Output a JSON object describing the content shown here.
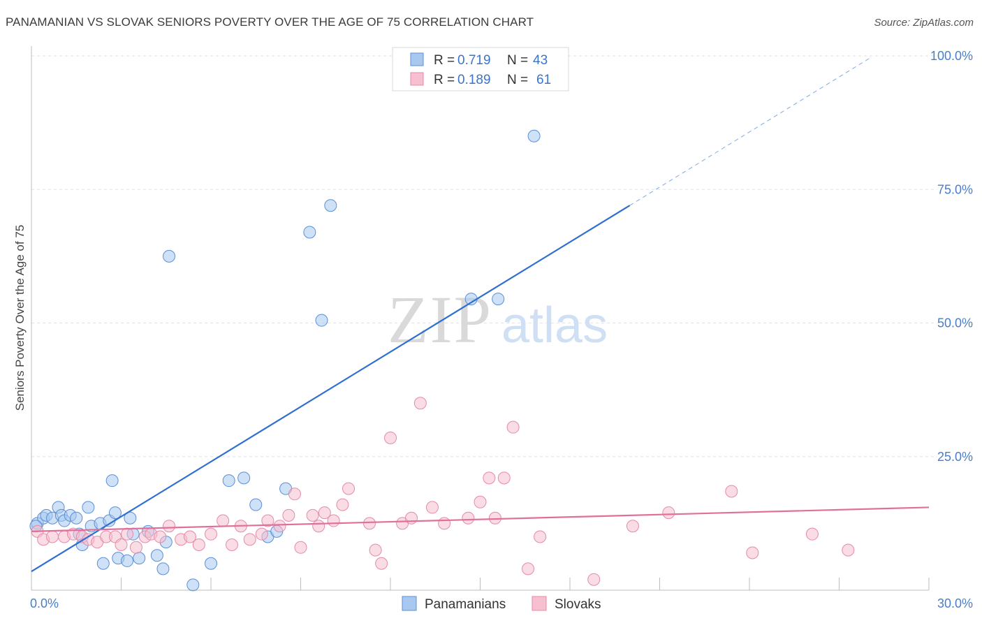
{
  "title": "PANAMANIAN VS SLOVAK SENIORS POVERTY OVER THE AGE OF 75 CORRELATION CHART",
  "source": "Source: ZipAtlas.com",
  "chart_data": {
    "type": "scatter",
    "title": "PANAMANIAN VS SLOVAK SENIORS POVERTY OVER THE AGE OF 75 CORRELATION CHART",
    "ylabel": "Seniors Poverty Over the Age of 75",
    "xlabel": "",
    "xlim": [
      0,
      30
    ],
    "ylim": [
      0,
      100
    ],
    "x_tick_labels": [
      "0.0%",
      "30.0%"
    ],
    "y_tick_labels": [
      "25.0%",
      "50.0%",
      "75.0%",
      "100.0%"
    ],
    "y_ticks": [
      25,
      50,
      75,
      100
    ],
    "watermark": {
      "zip": "ZIP",
      "atlas": "atlas"
    },
    "legend": {
      "rows": [
        {
          "r_label": "R = ",
          "r_value": "0.719",
          "n_label": "N = ",
          "n_value": "43"
        },
        {
          "r_label": "R = ",
          "r_value": "0.189",
          "n_label": "N = ",
          "n_value": "61"
        }
      ]
    },
    "series": [
      {
        "name": "Panamanians",
        "color": "#5b8fd6",
        "fill": "#a8c8f0",
        "trend": {
          "x0": 0,
          "y0": 3.5,
          "x1": 20,
          "y1": 72,
          "dash_to_x": 28,
          "dash_to_y": 99.5,
          "color": "#2f6fd0"
        },
        "points": [
          [
            0.2,
            12.5
          ],
          [
            0.4,
            13.5
          ],
          [
            0.5,
            14
          ],
          [
            0.7,
            13.5
          ],
          [
            0.9,
            15.5
          ],
          [
            1.0,
            14
          ],
          [
            1.1,
            13
          ],
          [
            1.3,
            14
          ],
          [
            1.5,
            13.5
          ],
          [
            1.6,
            10.5
          ],
          [
            1.7,
            8.5
          ],
          [
            1.9,
            15.5
          ],
          [
            2.0,
            12
          ],
          [
            2.3,
            12.5
          ],
          [
            2.4,
            5
          ],
          [
            2.6,
            13
          ],
          [
            2.7,
            20.5
          ],
          [
            2.8,
            14.5
          ],
          [
            2.9,
            6
          ],
          [
            3.2,
            5.5
          ],
          [
            3.3,
            13.5
          ],
          [
            3.4,
            10.5
          ],
          [
            3.6,
            6
          ],
          [
            3.9,
            11
          ],
          [
            4.2,
            6.5
          ],
          [
            4.4,
            4
          ],
          [
            4.5,
            9
          ],
          [
            4.6,
            62.5
          ],
          [
            5.4,
            1
          ],
          [
            6.0,
            5
          ],
          [
            6.6,
            20.5
          ],
          [
            7.1,
            21
          ],
          [
            7.5,
            16
          ],
          [
            7.9,
            10
          ],
          [
            8.2,
            11
          ],
          [
            8.5,
            19
          ],
          [
            9.3,
            67
          ],
          [
            9.7,
            50.5
          ],
          [
            10.0,
            72
          ],
          [
            14.7,
            54.5
          ],
          [
            15.6,
            54.5
          ],
          [
            16.8,
            85
          ],
          [
            0.15,
            12
          ]
        ]
      },
      {
        "name": "Slovaks",
        "color": "#e58aa8",
        "fill": "#f6c0d0",
        "trend": {
          "x0": 0,
          "y0": 11,
          "x1": 30,
          "y1": 15.5,
          "color": "#e0709a"
        },
        "points": [
          [
            0.2,
            11
          ],
          [
            0.4,
            9.5
          ],
          [
            0.7,
            10
          ],
          [
            1.1,
            10
          ],
          [
            1.4,
            10.5
          ],
          [
            1.7,
            10
          ],
          [
            1.9,
            9.5
          ],
          [
            2.2,
            9
          ],
          [
            2.5,
            10
          ],
          [
            2.8,
            10
          ],
          [
            3.0,
            8.5
          ],
          [
            3.2,
            10.5
          ],
          [
            3.5,
            8
          ],
          [
            3.8,
            10
          ],
          [
            4.0,
            10.5
          ],
          [
            4.3,
            10
          ],
          [
            4.6,
            12
          ],
          [
            5.0,
            9.5
          ],
          [
            5.3,
            10
          ],
          [
            5.6,
            8.5
          ],
          [
            6.0,
            10.5
          ],
          [
            6.4,
            13
          ],
          [
            6.7,
            8.5
          ],
          [
            7.0,
            12
          ],
          [
            7.3,
            9.5
          ],
          [
            7.7,
            10.5
          ],
          [
            7.9,
            13
          ],
          [
            8.3,
            12
          ],
          [
            8.6,
            14
          ],
          [
            8.8,
            18
          ],
          [
            9.0,
            8
          ],
          [
            9.4,
            14
          ],
          [
            9.6,
            12
          ],
          [
            9.8,
            14.5
          ],
          [
            10.1,
            13
          ],
          [
            10.4,
            16
          ],
          [
            10.6,
            19
          ],
          [
            11.3,
            12.5
          ],
          [
            11.5,
            7.5
          ],
          [
            11.7,
            5
          ],
          [
            12.0,
            28.5
          ],
          [
            12.4,
            12.5
          ],
          [
            12.7,
            13.5
          ],
          [
            13.0,
            35
          ],
          [
            13.4,
            15.5
          ],
          [
            13.8,
            12.5
          ],
          [
            14.6,
            13.5
          ],
          [
            15.0,
            16.5
          ],
          [
            15.3,
            21
          ],
          [
            15.5,
            13.5
          ],
          [
            15.8,
            21
          ],
          [
            16.1,
            30.5
          ],
          [
            16.6,
            4
          ],
          [
            17.0,
            10
          ],
          [
            18.8,
            2
          ],
          [
            20.1,
            12
          ],
          [
            21.3,
            14.5
          ],
          [
            23.4,
            18.5
          ],
          [
            24.1,
            7
          ],
          [
            26.1,
            10.5
          ],
          [
            27.3,
            7.5
          ]
        ]
      }
    ]
  }
}
